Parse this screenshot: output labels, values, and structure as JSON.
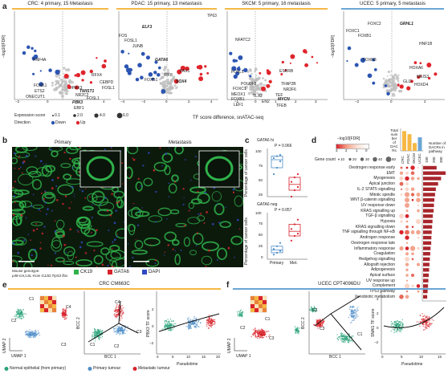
{
  "colors": {
    "orange": "#f6b845",
    "blue_bar": "#6aa6d6",
    "down": "#2c55b2",
    "up": "#e0242c",
    "grey": "#bdbdbd",
    "green": "#2fb24a",
    "red": "#d8242c",
    "dapi": "#2f49c6",
    "normal": "#2aa37a",
    "primary": "#4e8ec8",
    "metastatic": "#d8242c"
  },
  "panel_a": {
    "label": "a",
    "titles": [
      "CRC: 4 primary, 15 Metastasis",
      "PDAC: 15 primary, 13 metastasis",
      "SKCM: 5 primary, 16 metastasis",
      "UCEC: 5 primary, 5 metastasis"
    ],
    "ylabel": "−log10[FDR]",
    "xlabel": "TF score difference, snATAC-seq",
    "crc_ticks": [
      "−2",
      "0",
      "2",
      "4"
    ],
    "pdac_ticks": [
      "−4",
      "−2",
      "0",
      "2",
      "4"
    ],
    "skcm_ticks": [
      "−1",
      "0",
      "1",
      "2",
      "3"
    ],
    "ucec_ticks": [
      "−2",
      "0",
      "2"
    ],
    "crc_left": [
      "HNF4A",
      "FOXK1",
      "ETS2",
      "ONECUT1"
    ],
    "crc_right": [
      "RFX4",
      "CEBPD",
      "FOSL1",
      "TWIST1",
      "PAX3",
      "NR2C2",
      "FOSL1",
      "PBX3",
      "EBF1"
    ],
    "pdac_left": [
      "FOS",
      "FOSL1",
      "JUNB",
      "ELF3",
      "FOXB1"
    ],
    "pdac_mid": [
      "GATA6",
      "IRF8"
    ],
    "pdac_right": [
      "PAX1",
      "SOX4"
    ],
    "pdac_extra": [
      "TP63"
    ],
    "skcm_left": [
      "NFATC2",
      "FOXL1",
      "POU3F2",
      "FOXC1",
      "MEOX1",
      "FOXB1",
      "LEF1"
    ],
    "skcm_right": [
      "ESRRB",
      "TFAP2B",
      "NR2F6",
      "TLX2",
      "TEF",
      "EN2",
      "MYCN",
      "TFEB"
    ],
    "ucec_left": [
      "FOXC1",
      "FOXB1",
      "FOXN3",
      "FOXC2"
    ],
    "ucec_right": [
      "GRHL1",
      "HNF1B",
      "HOXA6",
      "MEIS3",
      "GLI2",
      "HOXD4"
    ],
    "legend_expr_label": "Expression score",
    "legend_expr_values": [
      "0.1",
      "2.0",
      "4.0",
      "6.0"
    ],
    "legend_dir_label": "Direction",
    "legend_dir_values": [
      "Down",
      "Up"
    ]
  },
  "panel_b": {
    "label": "b",
    "primary_title": "Primary",
    "met_title": "Metastasis",
    "genotype_line1": "Mouse genotype:",
    "genotype_line2": "p48-cre;LSL-Kras G12D;Trp53 flox",
    "legend": [
      "CK19",
      "GATA6",
      "DAPI"
    ]
  },
  "panel_c": {
    "label": "c",
    "top": {
      "marker": "GATA6 hi",
      "p": "P = 0.066",
      "ticks": [
        "100",
        "75",
        "50",
        "25"
      ]
    },
    "bottom": {
      "marker": "GATA6 neg",
      "p": "P = 0.057",
      "ticks": [
        "100",
        "75",
        "50",
        "25",
        "0"
      ]
    },
    "ylabel": "Percentage of cancer cells",
    "xcats": [
      "Primary",
      "Met."
    ],
    "chart_data": [
      {
        "type": "box",
        "title": "GATA6 hi",
        "categories": [
          "Primary",
          "Met."
        ],
        "values": [
          [
            60,
            70,
            80,
            85,
            88,
            90
          ],
          [
            25,
            35,
            40,
            48,
            55,
            60
          ]
        ],
        "ylim": [
          25,
          100
        ]
      },
      {
        "type": "box",
        "title": "GATA6 neg",
        "categories": [
          "Primary",
          "Met."
        ],
        "values": [
          [
            10,
            14,
            18,
            22,
            28,
            35
          ],
          [
            40,
            50,
            55,
            65,
            75,
            85
          ]
        ],
        "ylim": [
          0,
          100
        ]
      }
    ]
  },
  "panel_d": {
    "label": "d",
    "color_title": "−log10[FDR]",
    "color_ticks": [
      "3",
      "2",
      "1",
      "0"
    ],
    "gene_count_label": "Gene count",
    "gene_counts": [
      "10",
      "20",
      "30",
      "40",
      "50"
    ],
    "top_ylabel": "Total number of DACRs",
    "top_ticks": [
      "4,000",
      "2,000",
      "0"
    ],
    "right_label": "Number of DACRs in pathway",
    "right_ticks": [
      "100",
      "200",
      "300"
    ],
    "columns": [
      "CRC",
      "PDAC",
      "SKCM",
      "UCEC"
    ],
    "pathways": [
      "Oestrogen response early",
      "EMT",
      "Myogenesis",
      "Apical junction",
      "IL-2 STAT5 signalling",
      "Mitotic spindle",
      "WNT β-catenin signalling",
      "UV response down",
      "KRAS signalling up",
      "TGF-β signalling",
      "Hypoxia",
      "KRAS signalling down",
      "TNF signalling through NF-κB",
      "Androgen response",
      "Oestrogen response late",
      "Inflammatory response",
      "Coagulation",
      "Hedgehog signalling",
      "Allograft rejection",
      "Adipogenesis",
      "Apical surface",
      "UV response up",
      "Complement",
      "TP53 pathway",
      "Xenobiotic metabolism"
    ],
    "bars": [
      180,
      300,
      240,
      200,
      170,
      160,
      150,
      145,
      140,
      130,
      125,
      120,
      115,
      110,
      108,
      100,
      95,
      90,
      85,
      80,
      75,
      70,
      65,
      60,
      55
    ],
    "dacr_totals": [
      3800,
      3200,
      1500,
      2600
    ]
  },
  "panel_e": {
    "label": "e",
    "title": "CRC CM663C",
    "umap_x": "UMAP 1",
    "umap_y": "UMAP 2",
    "bcc_x": "BCC 1",
    "bcc_y": "BCC 2",
    "pseudo_x": "Pseudotime",
    "pseudo_y": "PBX3 TF score",
    "pseudo_xticks": [
      "0",
      "5",
      "10",
      "15",
      "20"
    ],
    "pseudo_yticks": [
      "2",
      "0",
      "−2"
    ],
    "clusters": [
      "C1",
      "C2",
      "C3",
      "C4"
    ]
  },
  "panel_f": {
    "label": "f",
    "title": "UCEC CPT4096DU",
    "umap_x": "UMAP 1",
    "umap_y": "UMAP 2",
    "bcc_x": "BCC 1",
    "bcc_y": "BCC 2",
    "pseudo_x": "Pseudotime",
    "pseudo_y": "SNAI1 TF score",
    "pseudo_xticks": [
      "0",
      "5",
      "10",
      "15"
    ],
    "pseudo_yticks": [
      "4",
      "2",
      "0",
      "−2"
    ],
    "clusters": [
      "C1",
      "C2",
      "C3"
    ]
  },
  "legend_bottom": [
    "Normal epithelial (from primary)",
    "Primary tumour",
    "Metastatic tumour"
  ]
}
